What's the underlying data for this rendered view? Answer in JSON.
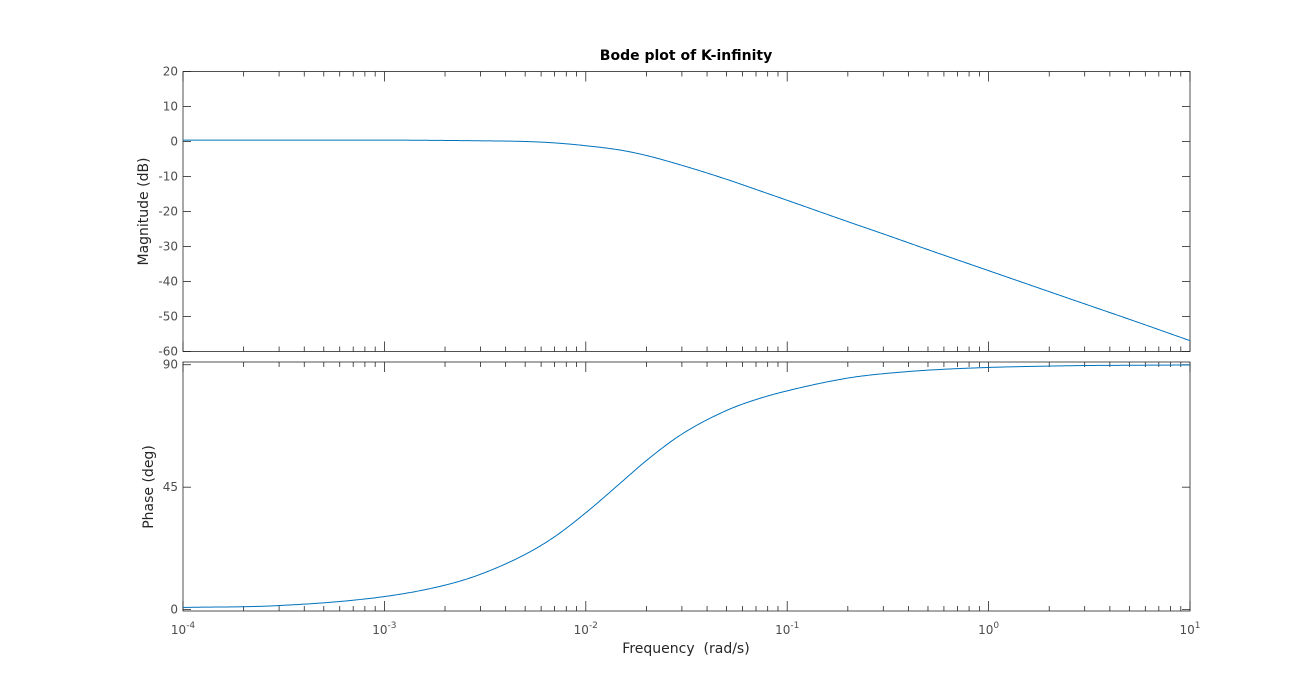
{
  "chart_data": {
    "type": "line",
    "title": "Bode plot of K-infinity",
    "xlabel": "Frequency  (rad/s)",
    "xscale": "log",
    "xlim": [
      0.0001,
      10
    ],
    "xticks": [
      {
        "base": "10",
        "exp": "-4"
      },
      {
        "base": "10",
        "exp": "-3"
      },
      {
        "base": "10",
        "exp": "-2"
      },
      {
        "base": "10",
        "exp": "-1"
      },
      {
        "base": "10",
        "exp": "0"
      },
      {
        "base": "10",
        "exp": "1"
      }
    ],
    "grid": false,
    "line_color": "#0072bd",
    "panels": [
      {
        "name": "magnitude",
        "ylabel": "Magnitude (dB)",
        "ylim": [
          -60,
          20
        ],
        "yticks": [
          "20",
          "10",
          "0",
          "-10",
          "-20",
          "-30",
          "-40",
          "-50",
          "-60"
        ],
        "series": {
          "x": [
            0.0001,
            0.0003,
            0.001,
            0.002,
            0.003,
            0.005,
            0.007,
            0.01,
            0.015,
            0.02,
            0.03,
            0.05,
            0.07,
            0.1,
            0.2,
            0.3,
            0.5,
            1,
            2,
            3,
            5,
            10
          ],
          "y": [
            0.4,
            0.4,
            0.4,
            0.3,
            0.2,
            0.0,
            -0.4,
            -1.2,
            -2.5,
            -4.0,
            -6.8,
            -10.8,
            -13.7,
            -16.8,
            -22.9,
            -26.4,
            -30.9,
            -36.9,
            -42.9,
            -46.4,
            -50.8,
            -56.9
          ]
        }
      },
      {
        "name": "phase",
        "ylabel": "Phase (deg)",
        "ylim": [
          -0.5,
          91
        ],
        "yticks": [
          "90",
          "45",
          "0"
        ],
        "series": {
          "x": [
            0.0001,
            0.0003,
            0.001,
            0.002,
            0.003,
            0.005,
            0.007,
            0.01,
            0.015,
            0.02,
            0.03,
            0.05,
            0.07,
            0.1,
            0.2,
            0.3,
            0.5,
            1,
            2,
            3,
            5,
            10
          ],
          "y": [
            0.8,
            1.5,
            4.8,
            9.0,
            13.0,
            20.3,
            26.8,
            35.6,
            46.8,
            54.8,
            64.5,
            73.2,
            77.2,
            80.4,
            85.1,
            86.7,
            88.0,
            89.0,
            89.5,
            89.7,
            89.8,
            89.9
          ]
        }
      }
    ]
  }
}
